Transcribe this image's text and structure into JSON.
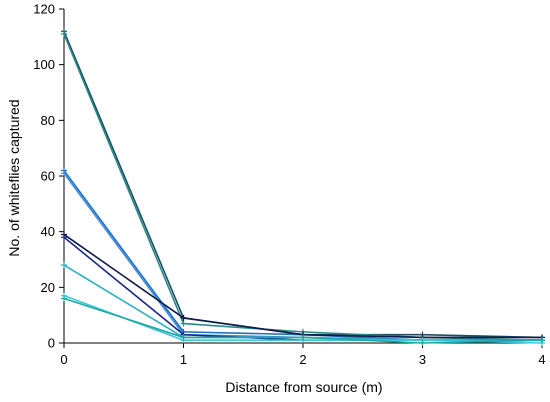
{
  "chart_data": {
    "type": "line",
    "title": "",
    "xlabel": "Distance from source (m)",
    "ylabel": "No. of whiteflies captured",
    "x": [
      0,
      1,
      2,
      3,
      4
    ],
    "xlim": [
      0,
      4
    ],
    "ylim": [
      0,
      120
    ],
    "xticks": [
      0,
      1,
      2,
      3,
      4
    ],
    "yticks": [
      0,
      20,
      40,
      60,
      80,
      100,
      120
    ],
    "grid": false,
    "legend": "none",
    "series": [
      {
        "values": [
          112,
          9,
          3,
          3,
          2
        ],
        "color": "#1f4e5f"
      },
      {
        "values": [
          111,
          7,
          4,
          2,
          1
        ],
        "color": "#2a8a8a"
      },
      {
        "values": [
          62,
          4,
          3,
          1,
          1
        ],
        "color": "#1f6fc4"
      },
      {
        "values": [
          61,
          3,
          2,
          1,
          1
        ],
        "color": "#3f8fd8"
      },
      {
        "values": [
          39,
          9,
          3,
          2,
          2
        ],
        "color": "#101a4a"
      },
      {
        "values": [
          38,
          3,
          1,
          1,
          1
        ],
        "color": "#1a2a8a"
      },
      {
        "values": [
          28,
          2,
          2,
          1,
          1
        ],
        "color": "#2bb0c0"
      },
      {
        "values": [
          17,
          1,
          1,
          1,
          0
        ],
        "color": "#3fc8d8"
      },
      {
        "values": [
          16,
          2,
          2,
          0,
          1
        ],
        "color": "#20a8a8"
      }
    ]
  }
}
